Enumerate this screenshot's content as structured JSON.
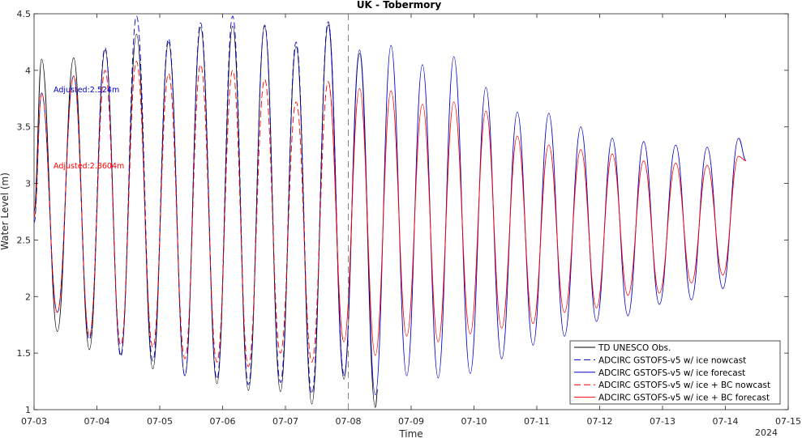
{
  "chart_data": {
    "type": "line",
    "title": "UK - Tobermory",
    "xlabel": "Time",
    "ylabel": "Water Level (m)",
    "year_label": "2024",
    "x_ticks": [
      "07-03",
      "07-04",
      "07-05",
      "07-06",
      "07-07",
      "07-08",
      "07-09",
      "07-10",
      "07-11",
      "07-12",
      "07-13",
      "07-14",
      "07-15"
    ],
    "y_ticks": [
      "1",
      "1.5",
      "2",
      "2.5",
      "3",
      "3.5",
      "4",
      "4.5"
    ],
    "xlim_days": [
      0,
      12
    ],
    "ylim": [
      1,
      4.5
    ],
    "nowcast_forecast_divider": "07-08",
    "grid": false,
    "legend_position": "bottom-right",
    "annotations": [
      {
        "text": "Adjusted:2.524m",
        "color": "#0000cc"
      },
      {
        "text": "Adjusted:2.8604m",
        "color": "#ff0000"
      }
    ],
    "series": [
      {
        "name": "TD UNESCO Obs.",
        "color": "#000000",
        "style": "solid",
        "points": [
          [
            0.0,
            2.75
          ],
          [
            0.12,
            4.1
          ],
          [
            0.37,
            1.69
          ],
          [
            0.63,
            4.11
          ],
          [
            0.88,
            1.53
          ],
          [
            1.13,
            4.18
          ],
          [
            1.38,
            1.49
          ],
          [
            1.63,
            4.32
          ],
          [
            1.89,
            1.36
          ],
          [
            2.14,
            4.25
          ],
          [
            2.4,
            1.3
          ],
          [
            2.65,
            4.38
          ],
          [
            2.91,
            1.23
          ],
          [
            3.16,
            4.39
          ],
          [
            3.41,
            1.17
          ],
          [
            3.67,
            4.39
          ],
          [
            3.92,
            1.16
          ],
          [
            4.17,
            4.21
          ],
          [
            4.42,
            1.05
          ],
          [
            4.68,
            4.4
          ],
          [
            4.93,
            1.27
          ],
          [
            5.18,
            4.15
          ],
          [
            5.43,
            1.02
          ],
          [
            5.47,
            1.18
          ]
        ]
      },
      {
        "name": "ADCIRC GSTOFS-v5 w/ ice nowcast",
        "color": "#0000cc",
        "style": "dashed",
        "points": [
          [
            0.0,
            2.65
          ],
          [
            0.12,
            3.8
          ],
          [
            0.37,
            1.86
          ],
          [
            0.63,
            3.95
          ],
          [
            0.88,
            1.62
          ],
          [
            1.13,
            4.2
          ],
          [
            1.38,
            1.47
          ],
          [
            1.63,
            4.48
          ],
          [
            1.89,
            1.43
          ],
          [
            2.14,
            4.28
          ],
          [
            2.4,
            1.3
          ],
          [
            2.65,
            4.42
          ],
          [
            2.91,
            1.27
          ],
          [
            3.16,
            4.48
          ],
          [
            3.41,
            1.22
          ],
          [
            3.67,
            4.4
          ],
          [
            3.92,
            1.24
          ],
          [
            4.17,
            4.25
          ],
          [
            4.42,
            1.14
          ],
          [
            4.68,
            4.43
          ],
          [
            4.93,
            1.32
          ]
        ]
      },
      {
        "name": "ADCIRC GSTOFS-v5 w/ ice forecast",
        "color": "#0000cc",
        "style": "solid",
        "points": [
          [
            4.68,
            4.43
          ],
          [
            4.93,
            1.3
          ],
          [
            5.18,
            4.18
          ],
          [
            5.43,
            1.13
          ],
          [
            5.68,
            4.22
          ],
          [
            5.93,
            1.3
          ],
          [
            6.18,
            4.05
          ],
          [
            6.43,
            1.28
          ],
          [
            6.68,
            4.12
          ],
          [
            6.94,
            1.32
          ],
          [
            7.19,
            3.85
          ],
          [
            7.44,
            1.45
          ],
          [
            7.69,
            3.63
          ],
          [
            7.94,
            1.57
          ],
          [
            8.19,
            3.62
          ],
          [
            8.44,
            1.65
          ],
          [
            8.7,
            3.5
          ],
          [
            8.95,
            1.78
          ],
          [
            9.2,
            3.4
          ],
          [
            9.45,
            1.83
          ],
          [
            9.7,
            3.37
          ],
          [
            9.95,
            1.93
          ],
          [
            10.21,
            3.34
          ],
          [
            10.46,
            1.97
          ],
          [
            10.71,
            3.32
          ],
          [
            10.96,
            2.07
          ],
          [
            11.21,
            3.4
          ],
          [
            11.33,
            3.2
          ]
        ]
      },
      {
        "name": "ADCIRC GSTOFS-v5 w/ ice + BC nowcast",
        "color": "#ff0000",
        "style": "dashed",
        "points": [
          [
            0.0,
            2.7
          ],
          [
            0.12,
            3.8
          ],
          [
            0.37,
            1.86
          ],
          [
            0.63,
            3.95
          ],
          [
            0.88,
            1.65
          ],
          [
            1.13,
            4.0
          ],
          [
            1.38,
            1.57
          ],
          [
            1.63,
            4.08
          ],
          [
            1.89,
            1.55
          ],
          [
            2.14,
            3.97
          ],
          [
            2.4,
            1.45
          ],
          [
            2.65,
            4.05
          ],
          [
            2.91,
            1.42
          ],
          [
            3.16,
            4.0
          ],
          [
            3.41,
            1.38
          ],
          [
            3.67,
            3.92
          ],
          [
            3.92,
            1.5
          ],
          [
            4.17,
            3.72
          ],
          [
            4.42,
            1.42
          ],
          [
            4.68,
            3.9
          ],
          [
            4.93,
            1.6
          ]
        ]
      },
      {
        "name": "ADCIRC GSTOFS-v5 w/ ice + BC forecast",
        "color": "#ff0000",
        "style": "solid",
        "points": [
          [
            4.68,
            3.9
          ],
          [
            4.93,
            1.6
          ],
          [
            5.18,
            3.84
          ],
          [
            5.43,
            1.48
          ],
          [
            5.68,
            3.82
          ],
          [
            5.93,
            1.65
          ],
          [
            6.18,
            3.7
          ],
          [
            6.43,
            1.6
          ],
          [
            6.68,
            3.72
          ],
          [
            6.94,
            1.67
          ],
          [
            7.19,
            3.64
          ],
          [
            7.44,
            1.72
          ],
          [
            7.69,
            3.42
          ],
          [
            7.94,
            1.76
          ],
          [
            8.19,
            3.34
          ],
          [
            8.44,
            1.86
          ],
          [
            8.7,
            3.3
          ],
          [
            8.95,
            1.9
          ],
          [
            9.2,
            3.26
          ],
          [
            9.45,
            2.01
          ],
          [
            9.7,
            3.2
          ],
          [
            9.95,
            2.03
          ],
          [
            10.21,
            3.18
          ],
          [
            10.46,
            2.12
          ],
          [
            10.71,
            3.16
          ],
          [
            10.96,
            2.19
          ],
          [
            11.21,
            3.24
          ],
          [
            11.33,
            3.2
          ]
        ]
      }
    ]
  }
}
